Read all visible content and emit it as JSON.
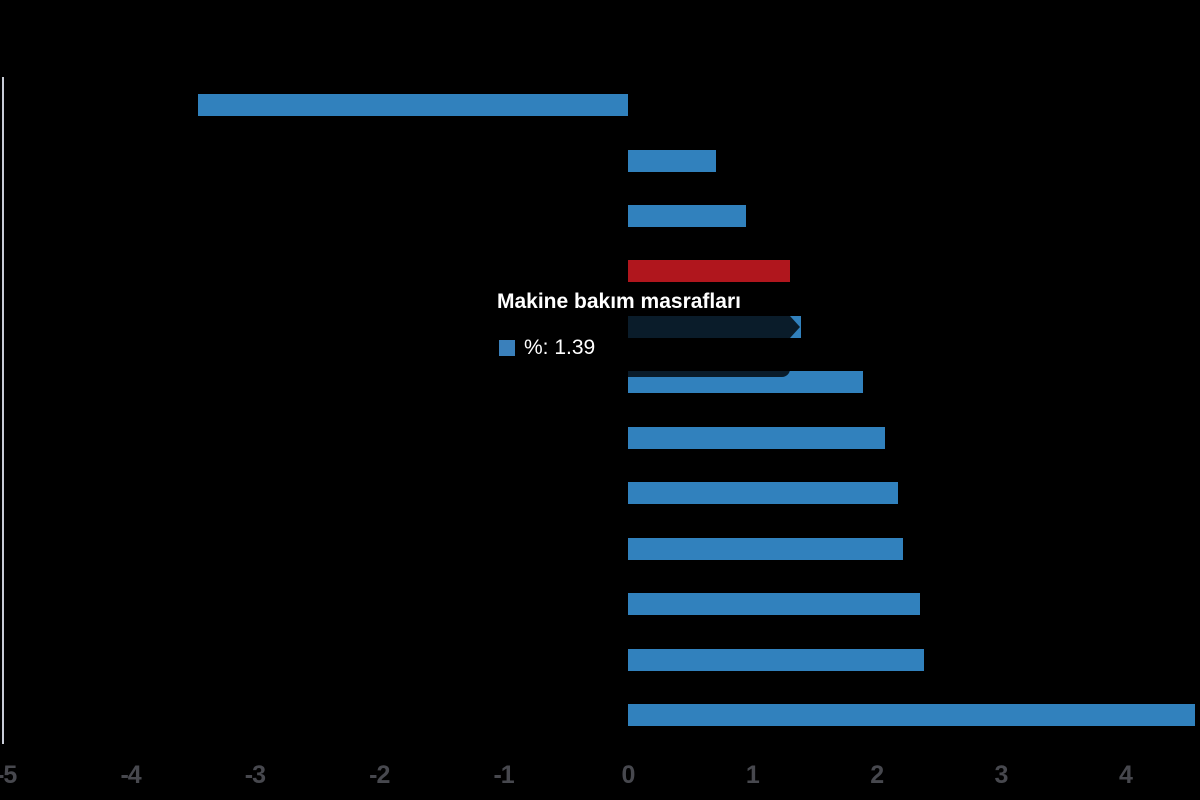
{
  "chart_data": {
    "type": "bar",
    "orientation": "horizontal",
    "title": "",
    "xlabel": "",
    "ylabel": "",
    "background_color": "#000000",
    "grid": false,
    "xlim": [
      -5.05,
      4.6
    ],
    "x_ticks": [
      -5,
      -4,
      -3,
      -2,
      -1,
      0,
      1,
      2,
      3,
      4
    ],
    "x_tick_labels": [
      "-5",
      "-4",
      "-3",
      "-2",
      "-1",
      "0",
      "1",
      "2",
      "3",
      "4"
    ],
    "categories": [
      "",
      "",
      "",
      "",
      "Makine bakım masrafları",
      "",
      "",
      "",
      "",
      "",
      "",
      ""
    ],
    "series": [
      {
        "name": "%",
        "values": [
          -3.46,
          0.71,
          0.95,
          1.3,
          1.39,
          1.89,
          2.07,
          2.17,
          2.21,
          2.35,
          2.38,
          4.56
        ]
      }
    ],
    "bar_colors": [
      "#3181bd",
      "#3181bd",
      "#3181bd",
      "#b0161d",
      "#3181bd",
      "#3181bd",
      "#3181bd",
      "#3181bd",
      "#3181bd",
      "#3181bd",
      "#3181bd",
      "#3181bd"
    ],
    "default_bar_color": "#3181bd",
    "highlight_bar_color": "#b0161d",
    "axis_line_color": "#c9cdd7",
    "tick_label_color": "#47484e"
  },
  "tooltip": {
    "title": "Makine bakım masrafları",
    "value_text": "%: 1.39",
    "swatch_color": "#3a80bb",
    "background": "rgba(0,0,0,0.78)"
  }
}
